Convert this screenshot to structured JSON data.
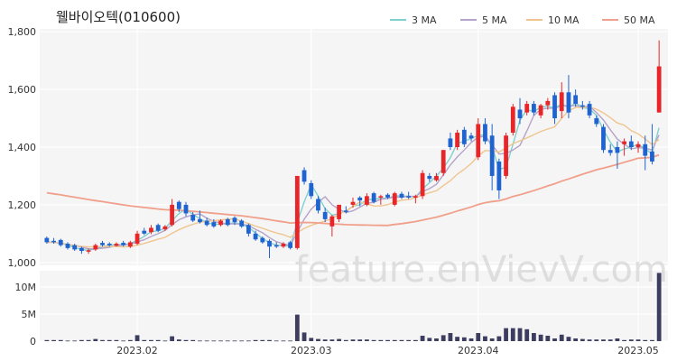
{
  "chart_data": {
    "type": "candlestick",
    "title": "웰바이오텍(010600)",
    "watermark": "feature.enVievV.com",
    "legend": [
      {
        "name": "3 MA",
        "color": "#7fd0cf"
      },
      {
        "name": "5 MA",
        "color": "#b5a3c9"
      },
      {
        "name": "10 MA",
        "color": "#efc58f"
      },
      {
        "name": "50 MA",
        "color": "#f0a08a"
      }
    ],
    "colors": {
      "up": "#e8262a",
      "down": "#1f63d1",
      "volume": "#3d3d60",
      "panel_bg": "#f5f5f5",
      "grid": "#ffffff"
    },
    "price_axis": {
      "ticks": [
        1000,
        1200,
        1400,
        1600,
        1800
      ],
      "tick_labels": [
        "1,000",
        "1,200",
        "1,400",
        "1,600",
        "1,800"
      ],
      "ylim": [
        990,
        1810
      ]
    },
    "volume_axis": {
      "ticks": [
        0,
        5,
        10
      ],
      "tick_labels": [
        "0",
        "5M",
        "10M"
      ],
      "ylim": [
        0,
        13
      ]
    },
    "x_labels": [
      {
        "index": 13,
        "label": "2023.02"
      },
      {
        "index": 38,
        "label": "2023.03"
      },
      {
        "index": 62,
        "label": "2023.04"
      },
      {
        "index": 85,
        "label": "2023.05"
      }
    ],
    "candles": [
      {
        "o": 1085,
        "h": 1090,
        "l": 1065,
        "c": 1070
      },
      {
        "o": 1075,
        "h": 1085,
        "l": 1065,
        "c": 1070
      },
      {
        "o": 1078,
        "h": 1082,
        "l": 1055,
        "c": 1060
      },
      {
        "o": 1065,
        "h": 1070,
        "l": 1045,
        "c": 1050
      },
      {
        "o": 1060,
        "h": 1065,
        "l": 1040,
        "c": 1045
      },
      {
        "o": 1050,
        "h": 1055,
        "l": 1030,
        "c": 1040
      },
      {
        "o": 1040,
        "h": 1048,
        "l": 1030,
        "c": 1042
      },
      {
        "o": 1045,
        "h": 1065,
        "l": 1040,
        "c": 1060
      },
      {
        "o": 1068,
        "h": 1075,
        "l": 1055,
        "c": 1060
      },
      {
        "o": 1065,
        "h": 1070,
        "l": 1055,
        "c": 1060
      },
      {
        "o": 1058,
        "h": 1070,
        "l": 1055,
        "c": 1065
      },
      {
        "o": 1068,
        "h": 1075,
        "l": 1055,
        "c": 1060
      },
      {
        "o": 1055,
        "h": 1075,
        "l": 1050,
        "c": 1070
      },
      {
        "o": 1065,
        "h": 1110,
        "l": 1060,
        "c": 1100
      },
      {
        "o": 1110,
        "h": 1120,
        "l": 1095,
        "c": 1100
      },
      {
        "o": 1105,
        "h": 1130,
        "l": 1098,
        "c": 1120
      },
      {
        "o": 1130,
        "h": 1135,
        "l": 1105,
        "c": 1110
      },
      {
        "o": 1115,
        "h": 1130,
        "l": 1110,
        "c": 1125
      },
      {
        "o": 1130,
        "h": 1220,
        "l": 1125,
        "c": 1200
      },
      {
        "o": 1210,
        "h": 1215,
        "l": 1175,
        "c": 1185
      },
      {
        "o": 1200,
        "h": 1210,
        "l": 1160,
        "c": 1170
      },
      {
        "o": 1165,
        "h": 1175,
        "l": 1140,
        "c": 1145
      },
      {
        "o": 1150,
        "h": 1180,
        "l": 1135,
        "c": 1140
      },
      {
        "o": 1145,
        "h": 1155,
        "l": 1125,
        "c": 1130
      },
      {
        "o": 1140,
        "h": 1150,
        "l": 1120,
        "c": 1125
      },
      {
        "o": 1130,
        "h": 1150,
        "l": 1125,
        "c": 1145
      },
      {
        "o": 1150,
        "h": 1155,
        "l": 1125,
        "c": 1130
      },
      {
        "o": 1155,
        "h": 1160,
        "l": 1130,
        "c": 1140
      },
      {
        "o": 1145,
        "h": 1150,
        "l": 1120,
        "c": 1125
      },
      {
        "o": 1130,
        "h": 1135,
        "l": 1090,
        "c": 1100
      },
      {
        "o": 1100,
        "h": 1110,
        "l": 1075,
        "c": 1080
      },
      {
        "o": 1085,
        "h": 1090,
        "l": 1065,
        "c": 1070
      },
      {
        "o": 1075,
        "h": 1080,
        "l": 1015,
        "c": 1055
      },
      {
        "o": 1060,
        "h": 1070,
        "l": 1050,
        "c": 1055
      },
      {
        "o": 1055,
        "h": 1070,
        "l": 1050,
        "c": 1065
      },
      {
        "o": 1070,
        "h": 1075,
        "l": 1045,
        "c": 1050
      },
      {
        "o": 1050,
        "h": 1300,
        "l": 1045,
        "c": 1300
      },
      {
        "o": 1320,
        "h": 1330,
        "l": 1270,
        "c": 1280
      },
      {
        "o": 1275,
        "h": 1285,
        "l": 1220,
        "c": 1230
      },
      {
        "o": 1220,
        "h": 1230,
        "l": 1170,
        "c": 1180
      },
      {
        "o": 1175,
        "h": 1190,
        "l": 1140,
        "c": 1150
      },
      {
        "o": 1125,
        "h": 1165,
        "l": 1090,
        "c": 1160
      },
      {
        "o": 1150,
        "h": 1200,
        "l": 1140,
        "c": 1200
      },
      {
        "o": 1180,
        "h": 1195,
        "l": 1170,
        "c": 1175
      },
      {
        "o": 1200,
        "h": 1225,
        "l": 1190,
        "c": 1210
      },
      {
        "o": 1225,
        "h": 1230,
        "l": 1195,
        "c": 1215
      },
      {
        "o": 1200,
        "h": 1240,
        "l": 1195,
        "c": 1230
      },
      {
        "o": 1240,
        "h": 1245,
        "l": 1205,
        "c": 1210
      },
      {
        "o": 1225,
        "h": 1235,
        "l": 1200,
        "c": 1230
      },
      {
        "o": 1235,
        "h": 1240,
        "l": 1220,
        "c": 1225
      },
      {
        "o": 1200,
        "h": 1245,
        "l": 1195,
        "c": 1240
      },
      {
        "o": 1238,
        "h": 1245,
        "l": 1220,
        "c": 1225
      },
      {
        "o": 1230,
        "h": 1245,
        "l": 1220,
        "c": 1225
      },
      {
        "o": 1225,
        "h": 1235,
        "l": 1205,
        "c": 1230
      },
      {
        "o": 1230,
        "h": 1320,
        "l": 1220,
        "c": 1310
      },
      {
        "o": 1300,
        "h": 1310,
        "l": 1280,
        "c": 1290
      },
      {
        "o": 1285,
        "h": 1310,
        "l": 1280,
        "c": 1300
      },
      {
        "o": 1310,
        "h": 1390,
        "l": 1300,
        "c": 1390
      },
      {
        "o": 1430,
        "h": 1450,
        "l": 1390,
        "c": 1400
      },
      {
        "o": 1400,
        "h": 1460,
        "l": 1390,
        "c": 1450
      },
      {
        "o": 1460,
        "h": 1470,
        "l": 1400,
        "c": 1410
      },
      {
        "o": 1440,
        "h": 1450,
        "l": 1420,
        "c": 1430
      },
      {
        "o": 1365,
        "h": 1500,
        "l": 1355,
        "c": 1480
      },
      {
        "o": 1480,
        "h": 1500,
        "l": 1410,
        "c": 1420
      },
      {
        "o": 1440,
        "h": 1480,
        "l": 1250,
        "c": 1300
      },
      {
        "o": 1350,
        "h": 1360,
        "l": 1220,
        "c": 1250
      },
      {
        "o": 1300,
        "h": 1450,
        "l": 1290,
        "c": 1440
      },
      {
        "o": 1450,
        "h": 1550,
        "l": 1440,
        "c": 1540
      },
      {
        "o": 1530,
        "h": 1570,
        "l": 1480,
        "c": 1500
      },
      {
        "o": 1520,
        "h": 1560,
        "l": 1510,
        "c": 1550
      },
      {
        "o": 1550,
        "h": 1560,
        "l": 1510,
        "c": 1520
      },
      {
        "o": 1510,
        "h": 1550,
        "l": 1500,
        "c": 1545
      },
      {
        "o": 1545,
        "h": 1570,
        "l": 1530,
        "c": 1560
      },
      {
        "o": 1580,
        "h": 1590,
        "l": 1480,
        "c": 1500
      },
      {
        "o": 1525,
        "h": 1625,
        "l": 1500,
        "c": 1590
      },
      {
        "o": 1590,
        "h": 1650,
        "l": 1500,
        "c": 1520
      },
      {
        "o": 1580,
        "h": 1600,
        "l": 1540,
        "c": 1550
      },
      {
        "o": 1545,
        "h": 1560,
        "l": 1530,
        "c": 1540
      },
      {
        "o": 1550,
        "h": 1560,
        "l": 1500,
        "c": 1510
      },
      {
        "o": 1500,
        "h": 1510,
        "l": 1470,
        "c": 1480
      },
      {
        "o": 1470,
        "h": 1480,
        "l": 1380,
        "c": 1390
      },
      {
        "o": 1390,
        "h": 1410,
        "l": 1370,
        "c": 1380
      },
      {
        "o": 1400,
        "h": 1420,
        "l": 1325,
        "c": 1380
      },
      {
        "o": 1410,
        "h": 1430,
        "l": 1370,
        "c": 1420
      },
      {
        "o": 1420,
        "h": 1440,
        "l": 1390,
        "c": 1400
      },
      {
        "o": 1400,
        "h": 1420,
        "l": 1380,
        "c": 1410
      },
      {
        "o": 1410,
        "h": 1440,
        "l": 1320,
        "c": 1370
      },
      {
        "o": 1385,
        "h": 1480,
        "l": 1340,
        "c": 1350
      },
      {
        "o": 1520,
        "h": 1770,
        "l": 1520,
        "c": 1680
      }
    ],
    "volumes_m": [
      0.2,
      0.2,
      0.2,
      0.1,
      0.1,
      0.2,
      0.2,
      0.4,
      0.2,
      0.2,
      0.2,
      0.1,
      0.2,
      1.1,
      0.2,
      0.2,
      0.2,
      0.1,
      0.9,
      0.3,
      0.2,
      0.2,
      0.1,
      0.1,
      0.1,
      0.1,
      0.1,
      0.1,
      0.1,
      0.1,
      0.2,
      0.2,
      0.2,
      0.1,
      0.1,
      0.1,
      4.9,
      1.6,
      0.6,
      0.4,
      0.3,
      0.3,
      0.4,
      0.2,
      0.3,
      0.3,
      0.3,
      0.2,
      0.2,
      0.2,
      0.2,
      0.2,
      0.2,
      0.2,
      1.0,
      0.6,
      0.5,
      1.1,
      1.5,
      0.8,
      0.7,
      0.5,
      1.5,
      0.9,
      0.5,
      0.9,
      2.4,
      2.4,
      2.4,
      2.2,
      1.5,
      1.2,
      1.0,
      0.5,
      1.2,
      0.8,
      0.5,
      0.4,
      0.3,
      0.3,
      0.3,
      0.3,
      0.5,
      0.2,
      0.3,
      0.3,
      0.2,
      0.2,
      12.6
    ]
  }
}
